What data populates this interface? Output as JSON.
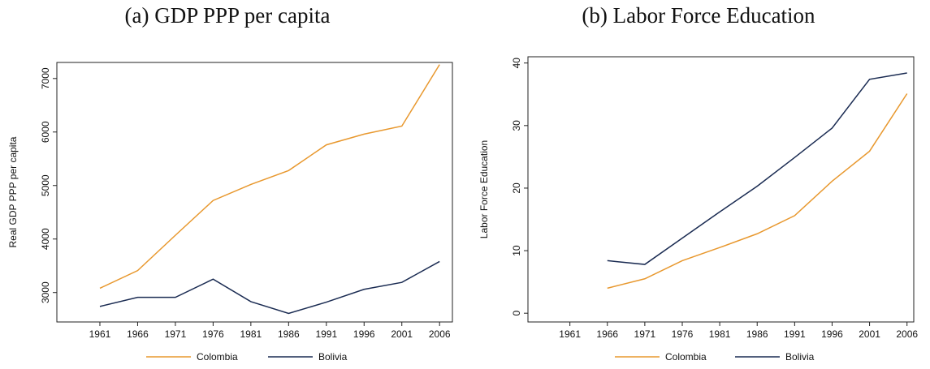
{
  "chart_data": [
    {
      "type": "line",
      "title": "(a) GDP PPP per capita",
      "ylabel": "Real GDP PPP per capita",
      "x": [
        1961,
        1966,
        1971,
        1976,
        1981,
        1986,
        1991,
        1996,
        2001,
        2006
      ],
      "series": [
        {
          "name": "Colombia",
          "color": "#e8982e",
          "values": [
            3080,
            3410,
            4070,
            4720,
            5020,
            5280,
            5760,
            5960,
            6110,
            7260
          ]
        },
        {
          "name": "Bolivia",
          "color": "#1a2b52",
          "values": [
            2740,
            2910,
            2910,
            3250,
            2830,
            2610,
            2820,
            3060,
            3190,
            3580
          ]
        }
      ],
      "xlim": [
        1955.3,
        2007.7
      ],
      "ylim": [
        2450,
        7300
      ],
      "xticks": [
        1961,
        1966,
        1971,
        1976,
        1981,
        1986,
        1991,
        1996,
        2001,
        2006
      ],
      "yticks": [
        3000,
        4000,
        5000,
        6000,
        7000
      ]
    },
    {
      "type": "line",
      "title": "(b) Labor Force Education",
      "ylabel": "Labor Force Education",
      "x": [
        1961,
        1966,
        1971,
        1976,
        1981,
        1986,
        1991,
        1996,
        2001,
        2006
      ],
      "series": [
        {
          "name": "Colombia",
          "color": "#e8982e",
          "values": [
            null,
            4.0,
            5.5,
            8.4,
            10.5,
            12.7,
            15.6,
            21.1,
            25.9,
            35.1
          ]
        },
        {
          "name": "Bolivia",
          "color": "#1a2b52",
          "values": [
            null,
            8.4,
            7.8,
            12.0,
            16.2,
            20.3,
            24.9,
            29.6,
            37.4,
            38.4
          ]
        }
      ],
      "xlim": [
        1955.4,
        2006.9
      ],
      "ylim": [
        -1.4,
        41.0
      ],
      "xticks": [
        1961,
        1966,
        1971,
        1976,
        1981,
        1986,
        1991,
        1996,
        2001,
        2006
      ],
      "yticks": [
        0,
        10,
        20,
        30,
        40
      ]
    }
  ]
}
